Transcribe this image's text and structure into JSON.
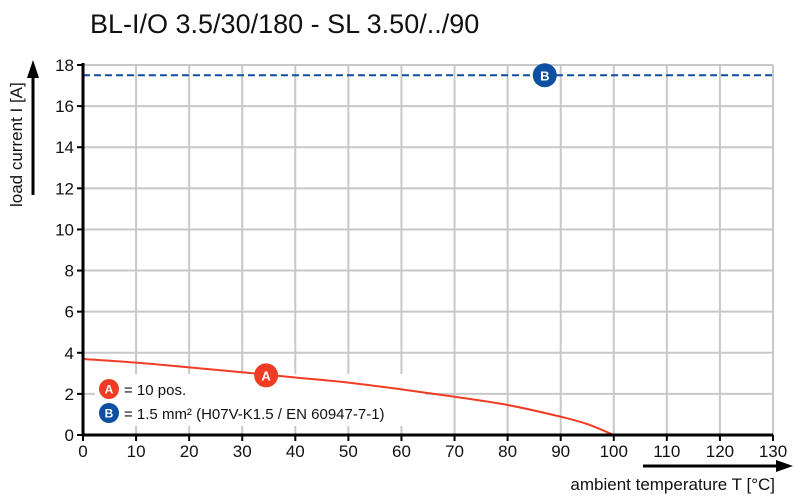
{
  "chart_data": {
    "type": "line",
    "title": "BL-I/O 3.5/30/180 - SL 3.50/../90",
    "xlabel": "ambient temperature T [°C]",
    "ylabel": "load current I [A]",
    "xlim": [
      0,
      130
    ],
    "ylim": [
      0,
      18
    ],
    "xticks": [
      0,
      10,
      20,
      30,
      40,
      50,
      60,
      70,
      80,
      90,
      100,
      110,
      120,
      130
    ],
    "yticks": [
      0,
      2,
      4,
      6,
      8,
      10,
      12,
      14,
      16,
      18
    ],
    "grid": true,
    "series": [
      {
        "name": "A",
        "label": "= 10 pos.",
        "color": "#f03c24",
        "style": "solid",
        "x": [
          0,
          10,
          20,
          30,
          40,
          50,
          60,
          70,
          80,
          90,
          95,
          100
        ],
        "y": [
          3.7,
          3.52,
          3.29,
          3.05,
          2.8,
          2.55,
          2.22,
          1.86,
          1.46,
          0.89,
          0.53,
          0
        ],
        "marker_at": [
          34.5,
          2.9
        ]
      },
      {
        "name": "B",
        "label": "= 1.5 mm² (H07V-K1.5 / EN 60947-7-1)",
        "color": "#0d4fa0",
        "style": "dashed",
        "x": [
          0,
          130
        ],
        "y": [
          17.5,
          17.5
        ],
        "marker_at": [
          87,
          17.5
        ]
      }
    ],
    "legend_placement": "bottom-left"
  }
}
